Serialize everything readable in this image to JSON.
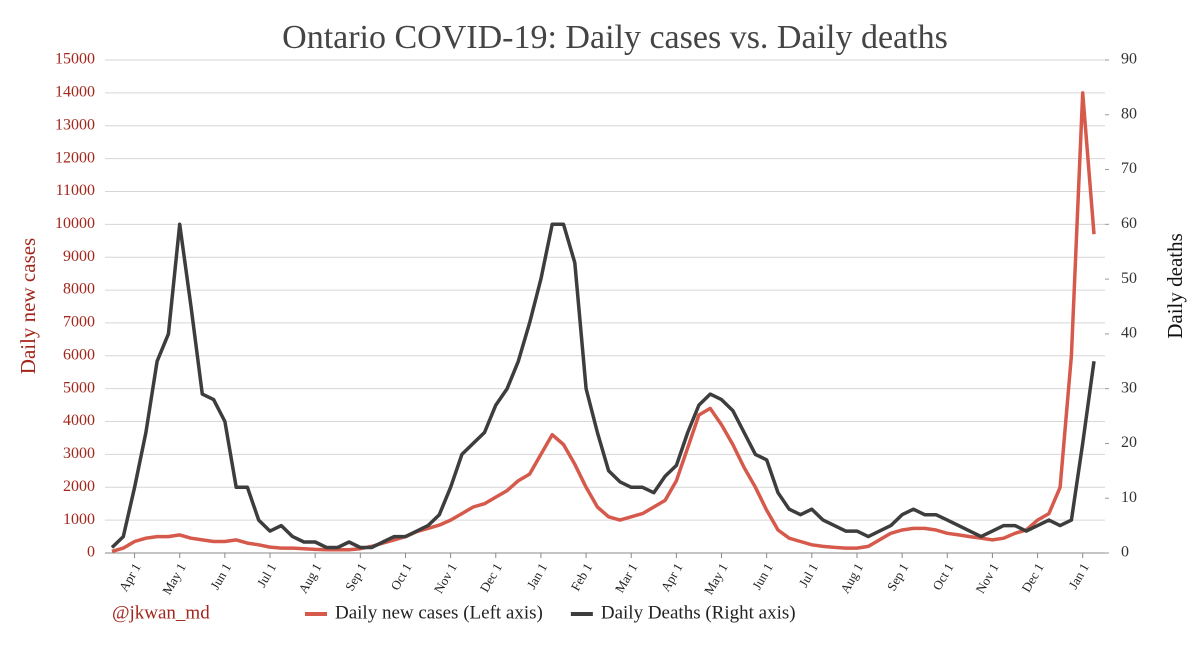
{
  "chart_data": {
    "type": "line",
    "title": "Ontario COVID-19: Daily cases vs. Daily deaths",
    "y_label": "Daily new cases",
    "y2_label": "Daily deaths",
    "annotation": "@jkwan_md",
    "categories": [
      null,
      null,
      "Apr 1",
      null,
      null,
      null,
      "May 1",
      null,
      null,
      null,
      "Jun 1",
      null,
      null,
      null,
      "Jul 1",
      null,
      null,
      null,
      "Aug 1",
      null,
      null,
      null,
      "Sep 1",
      null,
      null,
      null,
      "Oct 1",
      null,
      null,
      null,
      "Nov 1",
      null,
      null,
      null,
      "Dec 1",
      null,
      null,
      null,
      "Jan 1",
      null,
      null,
      null,
      "Feb 1",
      null,
      null,
      null,
      "Mar 1",
      null,
      null,
      null,
      "Apr 1",
      null,
      null,
      null,
      "May 1",
      null,
      null,
      null,
      "Jun 1",
      null,
      null,
      null,
      "Jul 1",
      null,
      null,
      null,
      "Aug 1",
      null,
      null,
      null,
      "Sep 1",
      null,
      null,
      null,
      "Oct 1",
      null,
      null,
      null,
      "Nov 1",
      null,
      null,
      null,
      "Dec 1",
      null,
      null,
      null,
      "Jan 1",
      null
    ],
    "series": [
      {
        "name": "Daily new cases (Left axis)",
        "color": "#d65a4c",
        "axis": "y",
        "values": [
          50,
          150,
          350,
          450,
          500,
          500,
          550,
          450,
          400,
          350,
          350,
          400,
          300,
          250,
          180,
          150,
          150,
          130,
          110,
          100,
          100,
          100,
          130,
          200,
          300,
          400,
          500,
          650,
          750,
          850,
          1000,
          1200,
          1400,
          1500,
          1700,
          1900,
          2200,
          2400,
          3000,
          3600,
          3300,
          2700,
          2000,
          1400,
          1100,
          1000,
          1100,
          1200,
          1400,
          1600,
          2200,
          3200,
          4200,
          4400,
          3900,
          3300,
          2600,
          2000,
          1300,
          700,
          450,
          350,
          250,
          200,
          170,
          150,
          150,
          200,
          400,
          600,
          700,
          750,
          750,
          700,
          600,
          550,
          500,
          450,
          400,
          450,
          600,
          700,
          1000,
          1200,
          2000,
          6000,
          14000,
          9700
        ]
      },
      {
        "name": "Daily Deaths (Right axis)",
        "color": "#3d3d3d",
        "axis": "y2",
        "values": [
          1,
          3,
          12,
          22,
          35,
          40,
          60,
          45,
          29,
          28,
          24,
          12,
          12,
          6,
          4,
          5,
          3,
          2,
          2,
          1,
          1,
          2,
          1,
          1,
          2,
          3,
          3,
          4,
          5,
          7,
          12,
          18,
          20,
          22,
          27,
          30,
          35,
          42,
          50,
          60,
          60,
          53,
          30,
          22,
          15,
          13,
          12,
          12,
          11,
          14,
          16,
          22,
          27,
          29,
          28,
          26,
          22,
          18,
          17,
          11,
          8,
          7,
          8,
          6,
          5,
          4,
          4,
          3,
          4,
          5,
          7,
          8,
          7,
          7,
          6,
          5,
          4,
          3,
          4,
          5,
          5,
          4,
          5,
          6,
          5,
          6,
          20,
          35
        ]
      }
    ],
    "ylim": [
      0,
      15000
    ],
    "yticks": [
      0,
      1000,
      2000,
      3000,
      4000,
      5000,
      6000,
      7000,
      8000,
      9000,
      10000,
      11000,
      12000,
      13000,
      14000,
      15000
    ],
    "y2lim": [
      0,
      90
    ],
    "y2ticks": [
      0,
      10,
      20,
      30,
      40,
      50,
      60,
      70,
      80,
      90
    ],
    "grid": true,
    "legend": "bottom"
  }
}
